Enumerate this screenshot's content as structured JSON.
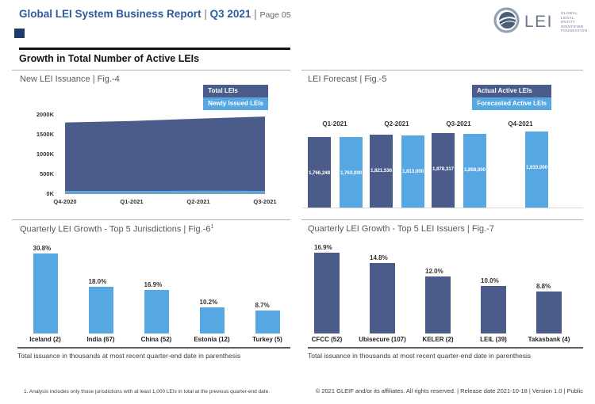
{
  "header": {
    "title": "Global LEI System Business Report",
    "divider": "|",
    "period": "Q3 2021",
    "page_label": "Page 05",
    "section_heading": "Growth in Total Number of Active LEIs"
  },
  "logo": {
    "acronym": "LEI",
    "org_lines": [
      "GLOBAL",
      "LEGAL",
      "ENTITY",
      "IDENTIFIER",
      "FOUNDATION"
    ]
  },
  "colors": {
    "title_blue": "#2d5b9e",
    "dark_navy": "#4b5c8a",
    "light_blue": "#57a7e3",
    "text_gray": "#595959",
    "text_dark": "#3d3d3d"
  },
  "chart_data": [
    {
      "id": "fig4",
      "type": "area",
      "stacked": true,
      "title": "New LEI Issuance | Fig.-4",
      "x": [
        "Q4-2020",
        "Q1-2021",
        "Q2-2021",
        "Q3-2021"
      ],
      "series": [
        {
          "name": "Total LEIs",
          "color": "#4b5c8a",
          "values": [
            1733000,
            1766000,
            1822000,
            1878000
          ]
        },
        {
          "name": "Newly Issued LEIs",
          "color": "#57a7e3",
          "values": [
            55000,
            58000,
            62000,
            60000
          ]
        }
      ],
      "ylim": [
        0,
        2000000
      ],
      "yticks": [
        "0K",
        "500K",
        "1000K",
        "1500K",
        "2000K"
      ],
      "legend_position": "top-right",
      "grid": "off"
    },
    {
      "id": "fig5",
      "type": "bar",
      "title": "LEI Forecast | Fig.-5",
      "categories": [
        "Q1-2021",
        "Q2-2021",
        "Q3-2021",
        "Q4-2021"
      ],
      "series": [
        {
          "name": "Actual Active LEIs",
          "color": "#4b5c8a",
          "values": [
            1766248,
            1821536,
            1878317,
            null
          ],
          "labels": [
            "1,766,248",
            "1,821,536",
            "1,878,317",
            null
          ]
        },
        {
          "name": "Forecasted Active LEIs",
          "color": "#57a7e3",
          "values": [
            1763000,
            1813000,
            1858000,
            1910000
          ],
          "labels": [
            "1,763,000",
            "1,813,000",
            "1,858,000",
            "1,910,000"
          ]
        }
      ],
      "legend_position": "top-right",
      "grid": "off"
    },
    {
      "id": "fig6",
      "type": "bar",
      "title": "Quarterly LEI Growth - Top 5 Jurisdictions | Fig.-6",
      "title_superscript": "1",
      "categories": [
        "Iceland (2)",
        "India (67)",
        "China (52)",
        "Estonia (12)",
        "Turkey (5)"
      ],
      "values": [
        30.8,
        18.0,
        16.9,
        10.2,
        8.7
      ],
      "value_labels": [
        "30.8%",
        "18.0%",
        "16.9%",
        "10.2%",
        "8.7%"
      ],
      "bar_color": "#57a7e3",
      "grid": "off"
    },
    {
      "id": "fig7",
      "type": "bar",
      "title": "Quarterly LEI Growth - Top 5 LEI Issuers | Fig.-7",
      "categories": [
        "CFCC (52)",
        "Ubisecure (107)",
        "KELER (2)",
        "LEIL (39)",
        "Takasbank (4)"
      ],
      "values": [
        16.9,
        14.8,
        12.0,
        10.0,
        8.8
      ],
      "value_labels": [
        "16.9%",
        "14.8%",
        "12.0%",
        "10.0%",
        "8.8%"
      ],
      "bar_color": "#4b5c8a",
      "grid": "off"
    }
  ],
  "notes": {
    "issuance_note": "Total issuance in thousands at most recent quarter-end date in parenthesis",
    "footnote": "1. Analysis includes only those jurisdictions with at least 1,000 LEIs in total at the previous quarter-end date.",
    "copyright": "© 2021 GLEIF and/or its affiliates. All rights reserved.  |  Release date 2021-10-18  |  Version 1.0  |  Public"
  }
}
